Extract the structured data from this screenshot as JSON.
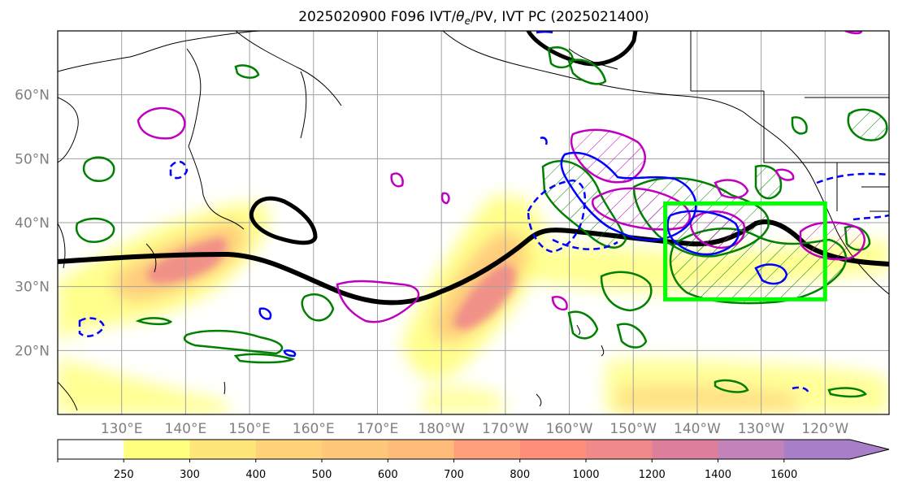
{
  "figure": {
    "title_prefix": "2025020900 F096 IVT/",
    "title_theta": "θ",
    "title_theta_sub": "e",
    "title_suffix": "/PV, IVT PC (2025021400)"
  },
  "map": {
    "lat_labels": [
      "60°N",
      "50°N",
      "40°N",
      "30°N",
      "20°N"
    ],
    "lat_values": [
      60,
      50,
      40,
      30,
      20
    ],
    "lon_labels": [
      "130°E",
      "140°E",
      "150°E",
      "160°E",
      "170°E",
      "180°W",
      "170°W",
      "160°W",
      "150°W",
      "140°W",
      "130°W",
      "120°W"
    ],
    "lon_values": [
      130,
      140,
      150,
      160,
      170,
      180,
      190,
      200,
      210,
      220,
      230,
      240
    ],
    "extent": {
      "lon_min": 120,
      "lon_max": 250,
      "lat_min": 10,
      "lat_max": 70
    },
    "colors": {
      "theta_e_contour": "#000000",
      "pv_contour_green": "#008000",
      "pv_contour_magenta": "#c000c0",
      "pv_contour_blue": "#0000ff",
      "target_box": "#00ff00"
    },
    "target_box_bounds": {
      "lon_min": 215,
      "lon_max": 240,
      "lat_min": 28,
      "lat_max": 43
    }
  },
  "colorbar": {
    "ticks": [
      "250",
      "300",
      "400",
      "500",
      "600",
      "700",
      "800",
      "1000",
      "1200",
      "1400",
      "1600"
    ],
    "colors": [
      "#ffffff",
      "#ffff80",
      "#ffe67a",
      "#ffd27a",
      "#ffc77a",
      "#ffbb7a",
      "#ffa07a",
      "#ff8f7a",
      "#f08a8a",
      "#dd7f9a",
      "#c283ba",
      "#a87ec8"
    ],
    "extend": "max"
  }
}
